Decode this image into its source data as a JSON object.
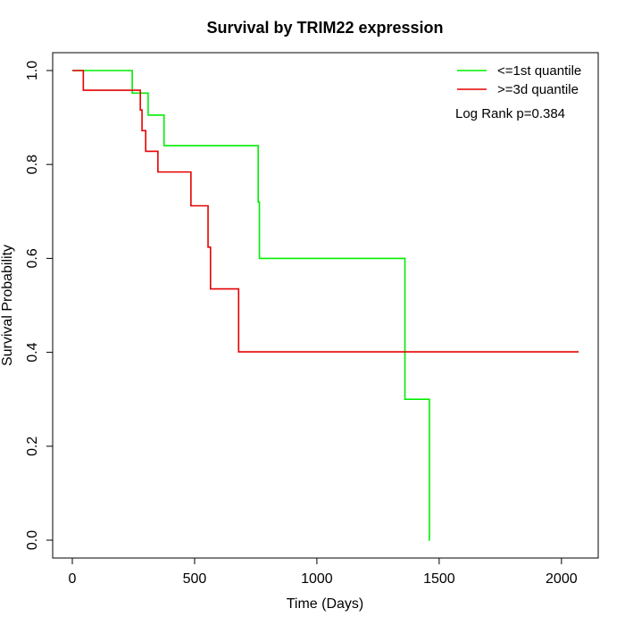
{
  "chart_data": {
    "type": "line",
    "title": "Survival by TRIM22 expression",
    "xlabel": "Time (Days)",
    "ylabel": "Survival Probability",
    "xlim": [
      0,
      2070
    ],
    "ylim": [
      0,
      1
    ],
    "x_ticks": [
      0,
      500,
      1000,
      1500,
      2000
    ],
    "y_ticks": [
      0.0,
      0.2,
      0.4,
      0.6,
      0.8,
      1.0
    ],
    "x_tick_labels": [
      "0",
      "500",
      "1000",
      "1500",
      "2000"
    ],
    "y_tick_labels": [
      "0.0",
      "0.2",
      "0.4",
      "0.6",
      "0.8",
      "1.0"
    ],
    "legend_position": "top-right",
    "grid": false,
    "series": [
      {
        "name": "<=1st quantile",
        "color": "#00ee00",
        "step": true,
        "x": [
          0,
          245,
          310,
          375,
          760,
          765,
          1360,
          1460,
          1462
        ],
        "y": [
          1.0,
          0.952,
          0.905,
          0.84,
          0.72,
          0.6,
          0.3,
          0.0,
          0.0
        ]
      },
      {
        "name": ">=3d quantile",
        "color": "#e50000",
        "step": true,
        "x": [
          0,
          45,
          278,
          285,
          300,
          350,
          485,
          555,
          565,
          680,
          2070
        ],
        "y": [
          1.0,
          0.958,
          0.916,
          0.872,
          0.828,
          0.784,
          0.712,
          0.624,
          0.535,
          0.401,
          0.401
        ]
      }
    ],
    "annotations": [
      "Log Rank p=0.384"
    ]
  }
}
